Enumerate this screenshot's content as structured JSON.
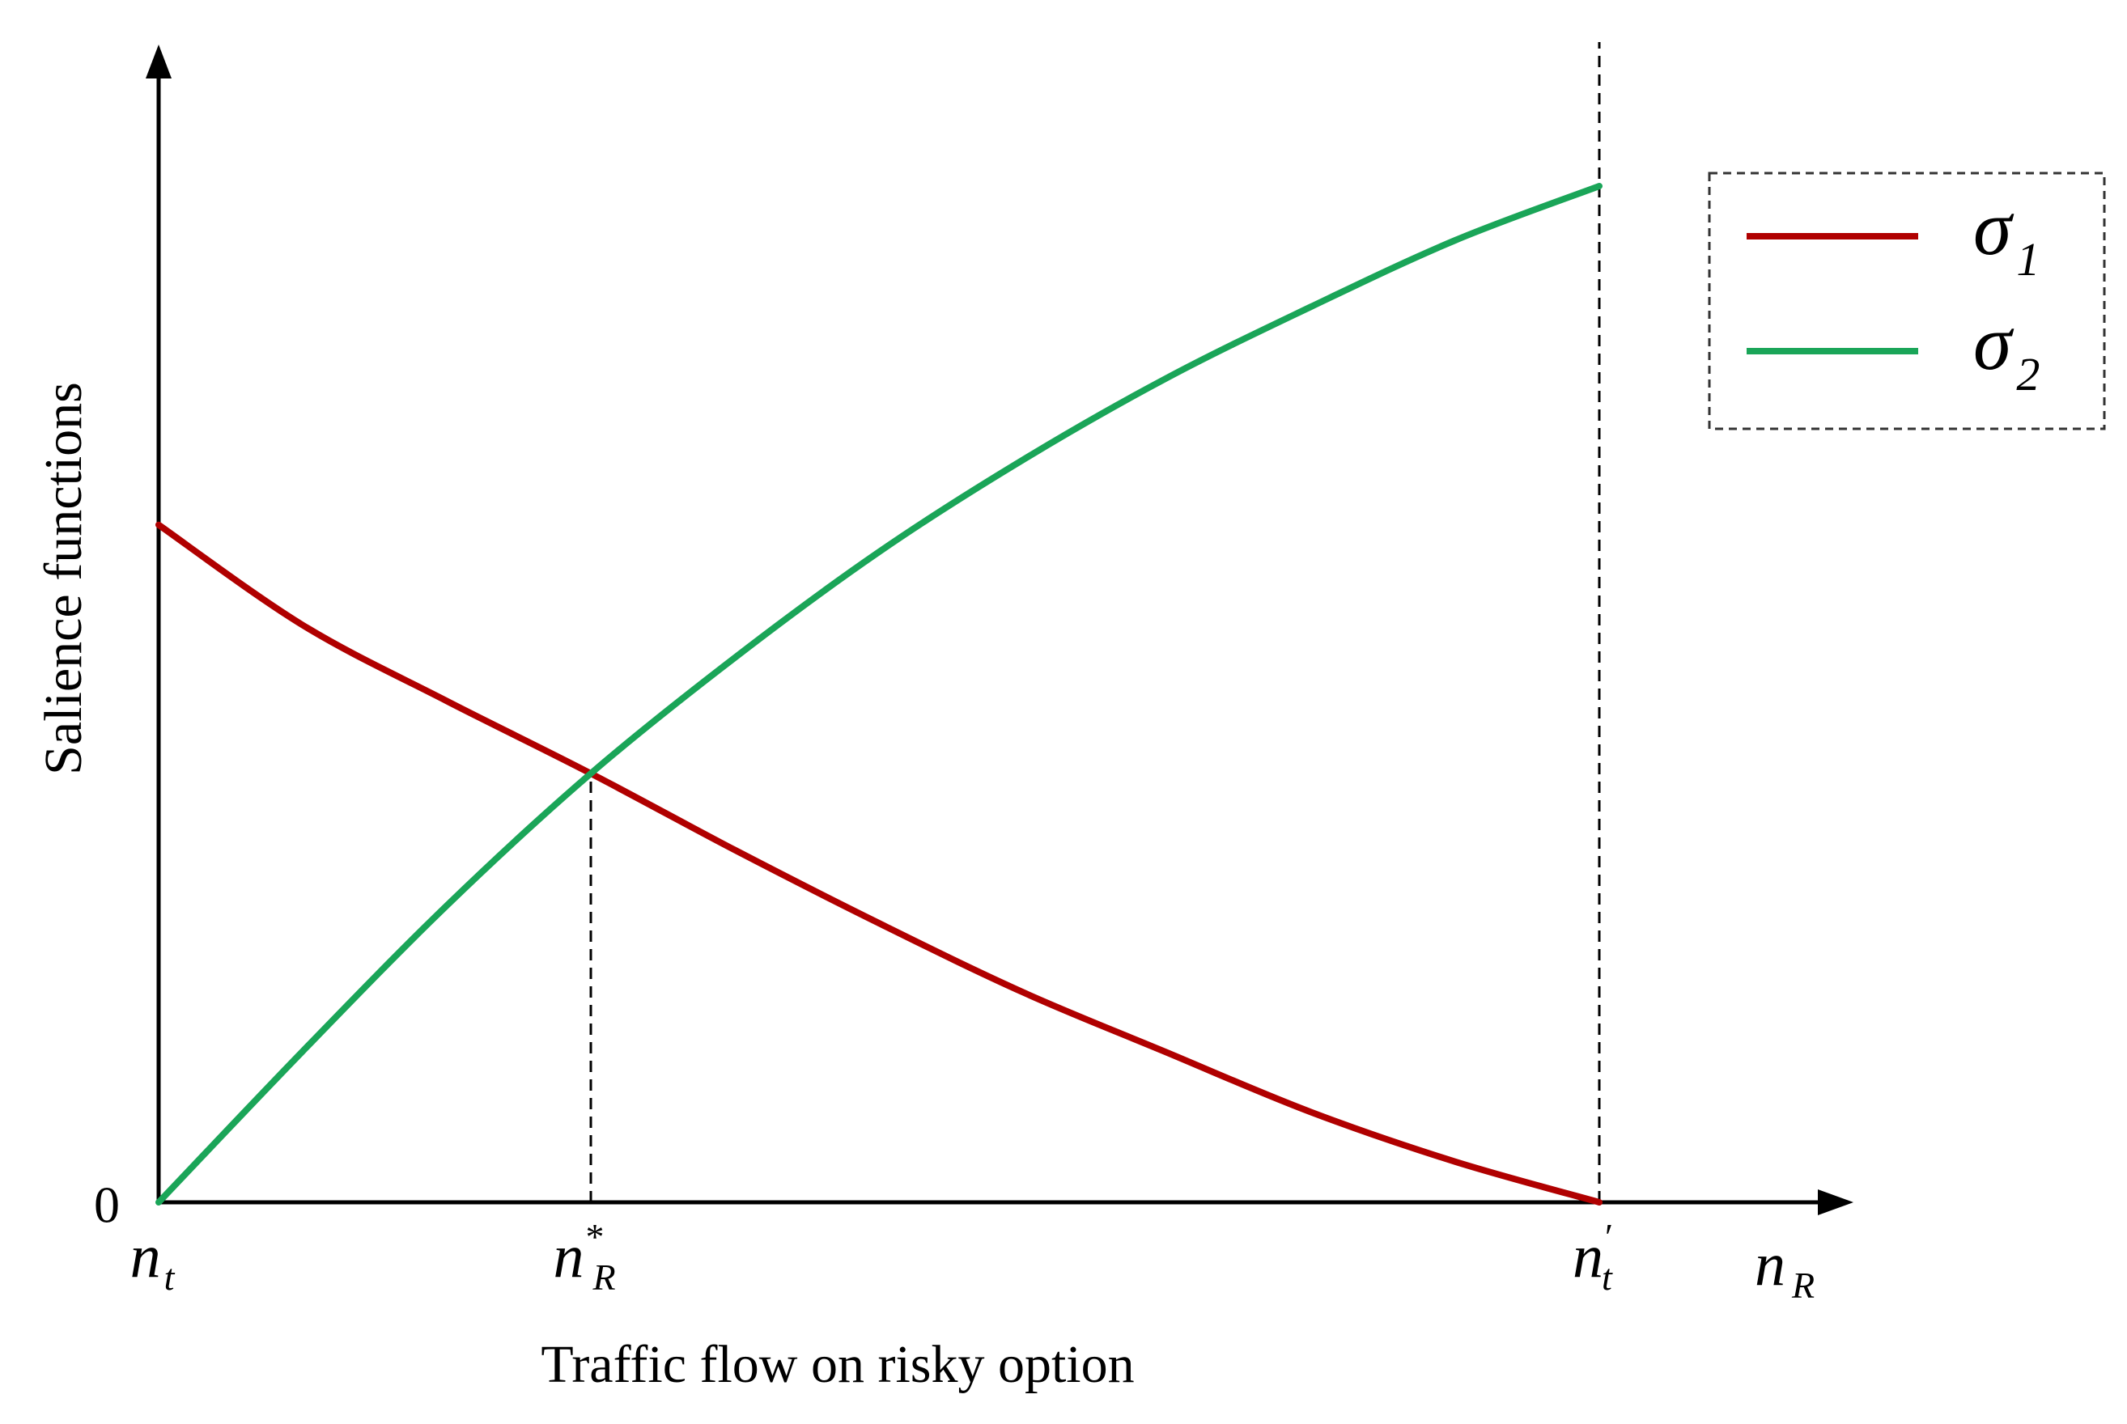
{
  "chart_data": {
    "type": "line",
    "title": "",
    "xlabel": "Traffic flow on risky option",
    "ylabel": "Salience functions",
    "x_axis_variable": {
      "main": "n",
      "sub": "R"
    },
    "x_ticks": [
      {
        "x": 0,
        "main": "n",
        "sub": "t",
        "sup": ""
      },
      {
        "x": 0.3,
        "main": "n",
        "sub": "R",
        "sup": "*"
      },
      {
        "x": 1.0,
        "main": "n",
        "sub": "t",
        "sup": "′"
      }
    ],
    "y_ticks": [
      {
        "y": 0,
        "label": "0"
      }
    ],
    "xlim": [
      0,
      1.17
    ],
    "ylim": [
      0,
      1.45
    ],
    "grid": false,
    "legend_position": "top-right",
    "legend_border": "dashed",
    "series": [
      {
        "name": "σ",
        "subscript": "1",
        "color": "#b00000",
        "x": [
          0,
          0.1,
          0.2,
          0.3,
          0.4,
          0.5,
          0.6,
          0.7,
          0.8,
          0.9,
          1.0
        ],
        "y": [
          1.0,
          0.852,
          0.74,
          0.633,
          0.52,
          0.412,
          0.31,
          0.221,
          0.133,
          0.06,
          0.0
        ]
      },
      {
        "name": "σ",
        "subscript": "2",
        "color": "#1aa558",
        "x": [
          0,
          0.1,
          0.2,
          0.3,
          0.4,
          0.5,
          0.6,
          0.7,
          0.8,
          0.9,
          1.0
        ],
        "y": [
          0.0,
          0.223,
          0.438,
          0.633,
          0.804,
          0.96,
          1.096,
          1.217,
          1.322,
          1.42,
          1.5
        ]
      }
    ],
    "reference_lines": [
      {
        "orientation": "vertical",
        "x": 0.3,
        "style": "dashed",
        "from_y": 0,
        "to_y": 0.633
      },
      {
        "orientation": "vertical",
        "x": 1.0,
        "style": "dashed",
        "full_height": true
      }
    ]
  }
}
